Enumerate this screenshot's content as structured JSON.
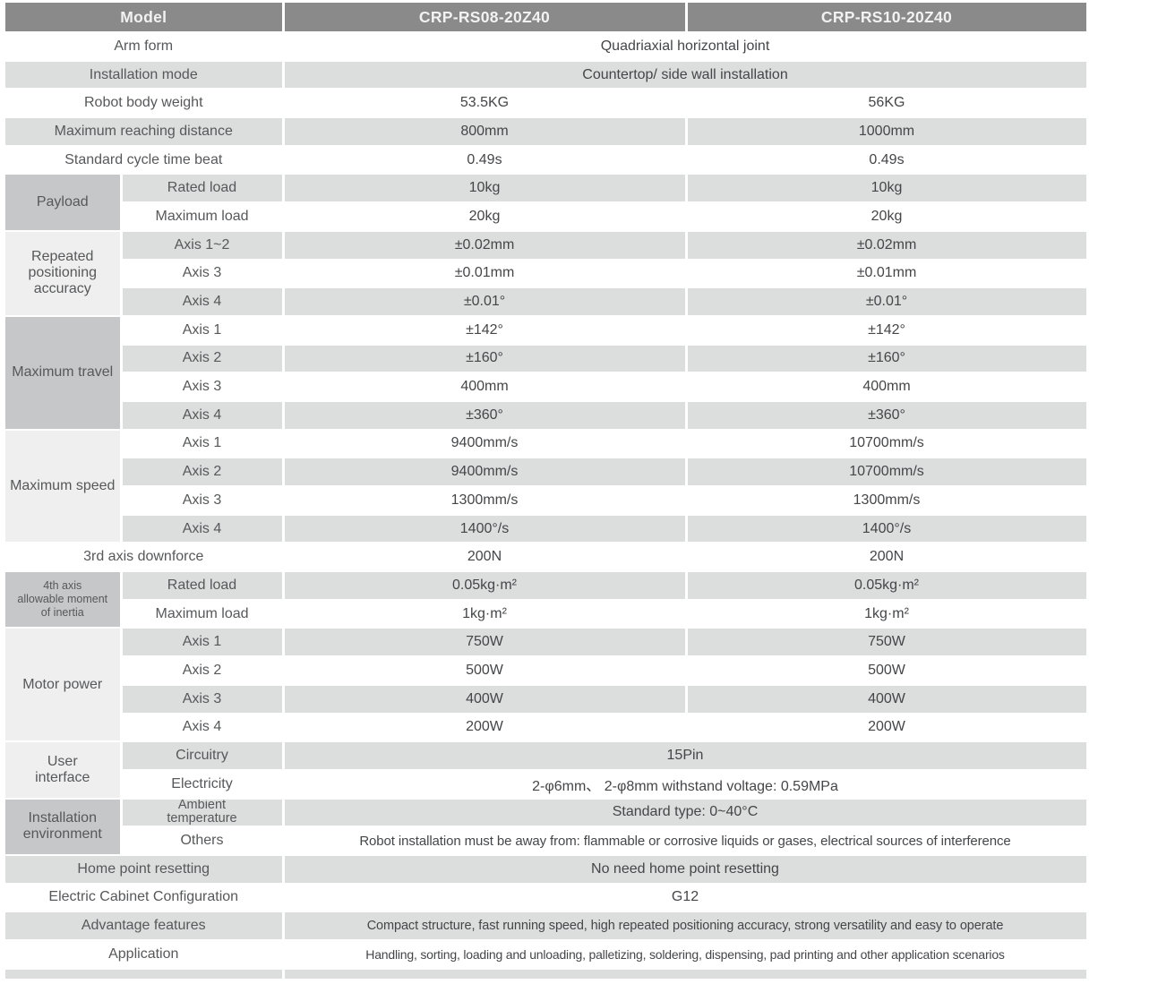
{
  "table": {
    "header": {
      "model": "Model",
      "model1": "CRP-RS08-20Z40",
      "model2": "CRP-RS10-20Z40"
    },
    "arm_form": {
      "label": "Arm form",
      "value": "Quadriaxial horizontal joint"
    },
    "installation_mode": {
      "label": "Installation mode",
      "value": "Countertop/ side wall installation"
    },
    "robot_body_weight": {
      "label": "Robot body weight",
      "v1": "53.5KG",
      "v2": "56KG"
    },
    "max_reach": {
      "label": "Maximum reaching distance",
      "v1": "800mm",
      "v2": "1000mm"
    },
    "cycle_time": {
      "label": "Standard cycle time beat",
      "v1": "0.49s",
      "v2": "0.49s"
    },
    "payload": {
      "label": "Payload",
      "rows": [
        {
          "label": "Rated load",
          "v1": "10kg",
          "v2": "10kg"
        },
        {
          "label": "Maximum load",
          "v1": "20kg",
          "v2": "20kg"
        }
      ]
    },
    "accuracy": {
      "label": "Repeated\npositioning\naccuracy",
      "rows": [
        {
          "label": "Axis 1~2",
          "v1": "±0.02mm",
          "v2": "±0.02mm"
        },
        {
          "label": "Axis 3",
          "v1": "±0.01mm",
          "v2": "±0.01mm"
        },
        {
          "label": "Axis 4",
          "v1": "±0.01°",
          "v2": "±0.01°"
        }
      ]
    },
    "travel": {
      "label": "Maximum travel",
      "rows": [
        {
          "label": "Axis 1",
          "v1": "±142°",
          "v2": "±142°"
        },
        {
          "label": "Axis 2",
          "v1": "±160°",
          "v2": "±160°"
        },
        {
          "label": "Axis 3",
          "v1": "400mm",
          "v2": "400mm"
        },
        {
          "label": "Axis 4",
          "v1": "±360°",
          "v2": "±360°"
        }
      ]
    },
    "speed": {
      "label": "Maximum speed",
      "rows": [
        {
          "label": "Axis 1",
          "v1": "9400mm/s",
          "v2": "10700mm/s"
        },
        {
          "label": "Axis 2",
          "v1": "9400mm/s",
          "v2": "10700mm/s"
        },
        {
          "label": "Axis 3",
          "v1": "1300mm/s",
          "v2": "1300mm/s"
        },
        {
          "label": "Axis 4",
          "v1": "1400°/s",
          "v2": "1400°/s"
        }
      ]
    },
    "downforce": {
      "label": "3rd axis downforce",
      "v1": "200N",
      "v2": "200N"
    },
    "inertia": {
      "label": "4th axis\nallowable moment\nof inertia",
      "rows": [
        {
          "label": "Rated load",
          "v1": "0.05kg·m²",
          "v2": "0.05kg·m²"
        },
        {
          "label": "Maximum load",
          "v1": "1kg·m²",
          "v2": "1kg·m²"
        }
      ]
    },
    "motor": {
      "label": "Motor power",
      "rows": [
        {
          "label": "Axis 1",
          "v1": "750W",
          "v2": "750W"
        },
        {
          "label": "Axis 2",
          "v1": "500W",
          "v2": "500W"
        },
        {
          "label": "Axis 3",
          "v1": "400W",
          "v2": "400W"
        },
        {
          "label": "Axis 4",
          "v1": "200W",
          "v2": "200W"
        }
      ]
    },
    "user_interface": {
      "label": "User\ninterface",
      "rows": [
        {
          "label": "Circuitry",
          "value": "15Pin"
        },
        {
          "label": "Electricity",
          "value": "2-φ6mm、 2-φ8mm withstand voltage: 0.59MPa"
        }
      ]
    },
    "environment": {
      "label": "Installation\nenvironment",
      "rows": [
        {
          "label": "Ambient\ntemperature",
          "value": "Standard type: 0~40°C"
        },
        {
          "label": "Others",
          "value": "Robot installation must be away from: flammable or corrosive liquids or gases, electrical sources of interference"
        }
      ]
    },
    "home_reset": {
      "label": "Home point resetting",
      "value": "No need home point resetting"
    },
    "cabinet": {
      "label": "Electric Cabinet Configuration",
      "value": "G12"
    },
    "advantage": {
      "label": "Advantage features",
      "value": "Compact structure, fast running speed, high repeated positioning accuracy, strong versatility and easy to operate"
    },
    "application": {
      "label": "Application",
      "value": "Handling, sorting, loading and unloading, palletizing, soldering, dispensing, pad printing and other application scenarios"
    }
  },
  "colors": {
    "header_bg": "#8a8a8a",
    "row_shade": "#dcdddd",
    "group_dark": "#c6c7c8",
    "group_light": "#efefef"
  }
}
